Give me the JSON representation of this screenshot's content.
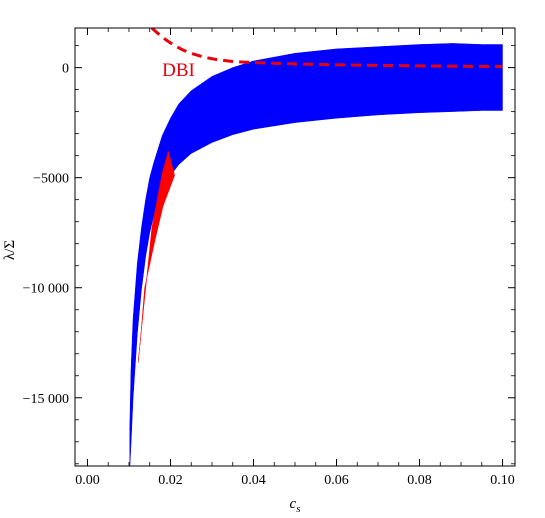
{
  "chart_data": {
    "type": "area",
    "title": "",
    "xlabel": "c",
    "xlabel_subscript": "s",
    "ylabel": "λ/Σ",
    "xlim": [
      -0.003,
      0.103
    ],
    "ylim": [
      -18100,
      1800
    ],
    "grid": false,
    "x_ticks": [
      0.0,
      0.02,
      0.04,
      0.06,
      0.08,
      0.1
    ],
    "x_tick_labels": [
      "0.00",
      "0.02",
      "0.04",
      "0.06",
      "0.08",
      "0.10"
    ],
    "y_ticks": [
      0,
      -5000,
      -10000,
      -15000
    ],
    "y_tick_labels": [
      "0",
      "−5000",
      "−10 000",
      "−15 000"
    ],
    "colors": {
      "blue_region": "#0000ff",
      "red_region": "#ff0000",
      "dbi_curve": "#e8000b"
    },
    "series": [
      {
        "kind": "region",
        "color": "#0000ff",
        "upper": {
          "x": [
            0.0102,
            0.0105,
            0.011,
            0.012,
            0.013,
            0.014,
            0.015,
            0.016,
            0.018,
            0.02,
            0.022,
            0.025,
            0.03,
            0.035,
            0.04,
            0.05,
            0.06,
            0.07,
            0.08,
            0.088,
            0.095,
            0.1
          ],
          "y": [
            -16300,
            -13700,
            -11400,
            -8900,
            -7300,
            -6000,
            -5000,
            -4300,
            -3100,
            -2300,
            -1650,
            -1050,
            -400,
            0,
            300,
            650,
            850,
            950,
            1050,
            1100,
            1050,
            1050
          ]
        },
        "lower": {
          "x": [
            0.0102,
            0.0105,
            0.011,
            0.012,
            0.013,
            0.014,
            0.015,
            0.016,
            0.018,
            0.02,
            0.022,
            0.025,
            0.03,
            0.035,
            0.04,
            0.05,
            0.06,
            0.07,
            0.08,
            0.088,
            0.095,
            0.1
          ],
          "y": [
            -18200,
            -17100,
            -15000,
            -12100,
            -10100,
            -8600,
            -7500,
            -6700,
            -5600,
            -4900,
            -4400,
            -3900,
            -3400,
            -3050,
            -2800,
            -2500,
            -2300,
            -2150,
            -2050,
            -2000,
            -1950,
            -1950
          ]
        }
      },
      {
        "kind": "polygon",
        "color": "#ff0000",
        "points": [
          {
            "x": 0.0122,
            "y": -13400
          },
          {
            "x": 0.0155,
            "y": -7300
          },
          {
            "x": 0.018,
            "y": -4800
          },
          {
            "x": 0.0195,
            "y": -3800
          },
          {
            "x": 0.021,
            "y": -4900
          },
          {
            "x": 0.0182,
            "y": -6300
          },
          {
            "x": 0.0162,
            "y": -7900
          },
          {
            "x": 0.0138,
            "y": -10000
          },
          {
            "x": 0.0127,
            "y": -12500
          }
        ]
      },
      {
        "kind": "line",
        "style": "dashed",
        "color": "#e8000b",
        "x": [
          0.0155,
          0.017,
          0.019,
          0.021,
          0.023,
          0.025,
          0.028,
          0.031,
          0.035,
          0.04,
          0.05,
          0.06,
          0.07,
          0.08,
          0.09,
          0.1
        ],
        "y": [
          1800,
          1550,
          1250,
          1000,
          800,
          650,
          480,
          370,
          280,
          230,
          170,
          130,
          100,
          80,
          60,
          50
        ]
      }
    ],
    "annotations": [
      {
        "text": "DBI",
        "x": 0.018,
        "y": -100,
        "color": "#e8000b"
      }
    ]
  }
}
